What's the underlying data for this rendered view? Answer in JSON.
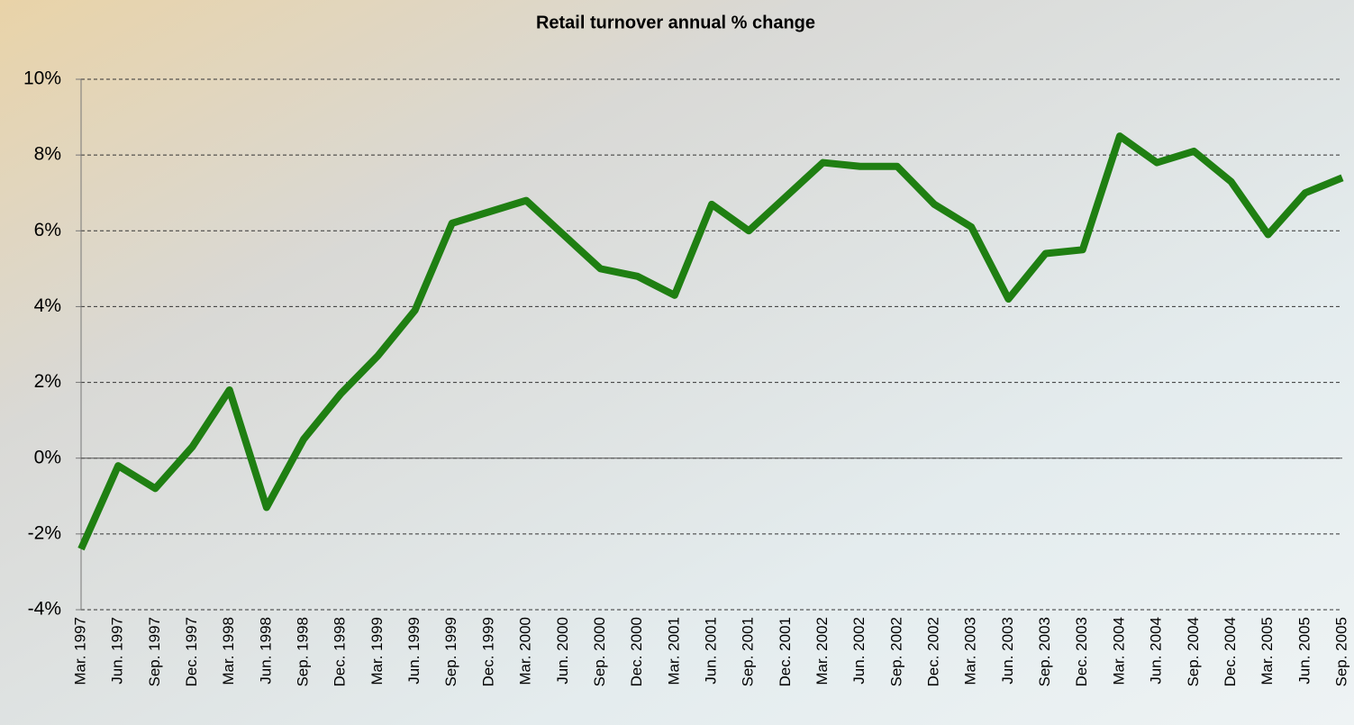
{
  "chart_data": {
    "type": "line",
    "title": "Retail turnover annual % change",
    "categories": [
      "Mar. 1997",
      "Jun. 1997",
      "Sep. 1997",
      "Dec. 1997",
      "Mar. 1998",
      "Jun. 1998",
      "Sep. 1998",
      "Dec. 1998",
      "Mar. 1999",
      "Jun. 1999",
      "Sep. 1999",
      "Dec. 1999",
      "Mar. 2000",
      "Jun. 2000",
      "Sep. 2000",
      "Dec. 2000",
      "Mar. 2001",
      "Jun. 2001",
      "Sep. 2001",
      "Dec. 2001",
      "Mar. 2002",
      "Jun. 2002",
      "Sep. 2002",
      "Dec. 2002",
      "Mar. 2003",
      "Jun. 2003",
      "Sep. 2003",
      "Dec. 2003",
      "Mar. 2004",
      "Jun. 2004",
      "Sep. 2004",
      "Dec. 2004",
      "Mar. 2005",
      "Jun. 2005",
      "Sep. 2005"
    ],
    "values": [
      -2.4,
      -0.2,
      -0.8,
      0.3,
      1.8,
      -1.3,
      0.5,
      1.7,
      2.7,
      3.9,
      6.2,
      6.5,
      6.8,
      5.9,
      5.0,
      4.8,
      4.3,
      6.7,
      6.0,
      6.9,
      7.8,
      7.7,
      7.7,
      6.7,
      6.1,
      4.2,
      5.4,
      5.5,
      8.5,
      7.8,
      8.1,
      7.3,
      5.9,
      7.0,
      7.4
    ],
    "color": "#1f7f12",
    "ylim": [
      -4,
      10
    ],
    "yticks": [
      {
        "value": -4,
        "label": "-4%"
      },
      {
        "value": -2,
        "label": "-2%"
      },
      {
        "value": 0,
        "label": "0%"
      },
      {
        "value": 2,
        "label": "2%"
      },
      {
        "value": 4,
        "label": "4%"
      },
      {
        "value": 6,
        "label": "6%"
      },
      {
        "value": 8,
        "label": "8%"
      },
      {
        "value": 10,
        "label": "10%"
      }
    ],
    "grid": true
  }
}
